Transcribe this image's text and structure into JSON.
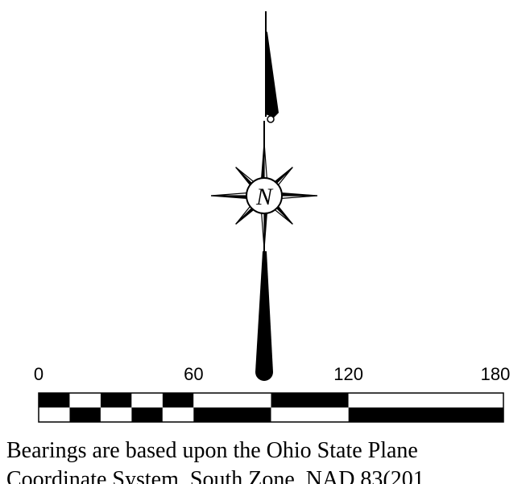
{
  "north_arrow": {
    "label": "N"
  },
  "scale_bar": {
    "labels": [
      "0",
      "60",
      "120",
      "180"
    ]
  },
  "note": {
    "lines": [
      "Bearings are based upon the Ohio State Plane",
      "Coordinate System, South Zone, NAD 83(201"
    ]
  }
}
